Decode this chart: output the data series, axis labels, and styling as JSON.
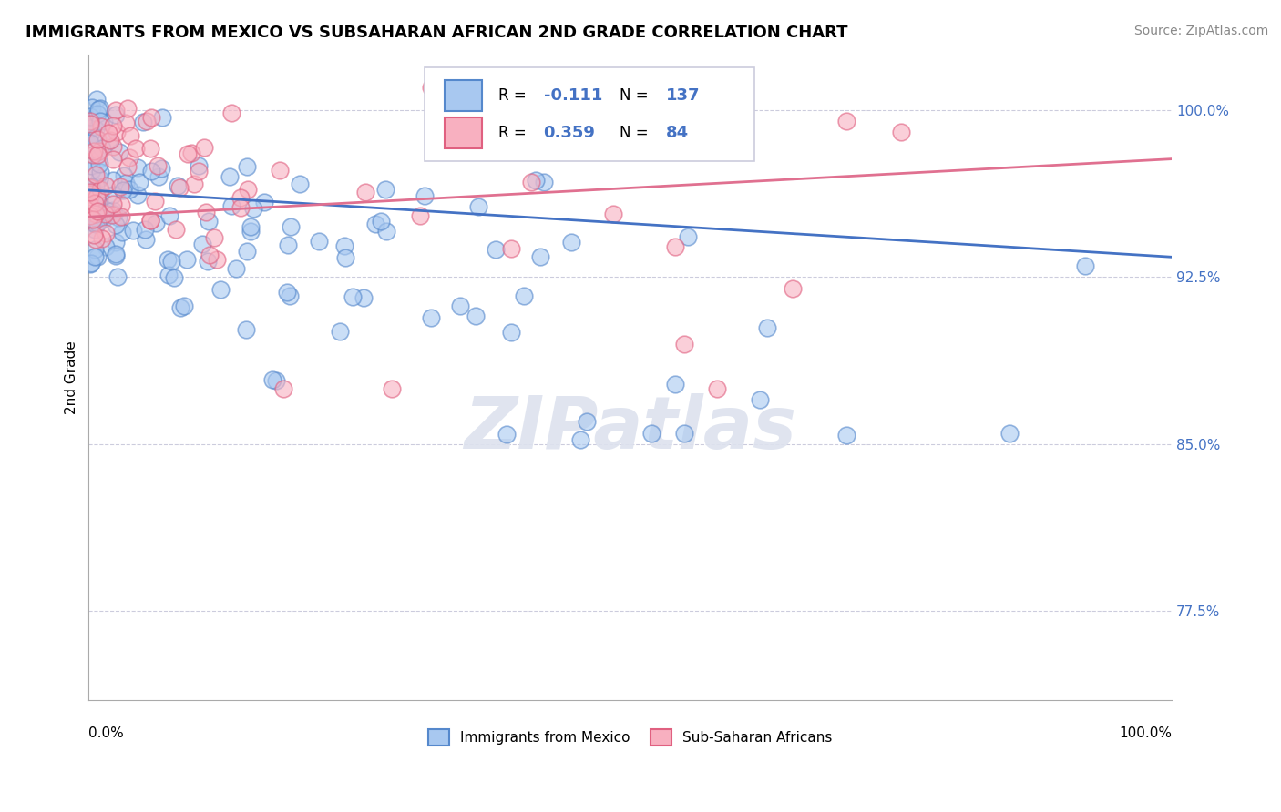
{
  "title": "IMMIGRANTS FROM MEXICO VS SUBSAHARAN AFRICAN 2ND GRADE CORRELATION CHART",
  "source": "Source: ZipAtlas.com",
  "ylabel": "2nd Grade",
  "y_ticks": [
    0.775,
    0.85,
    0.925,
    1.0
  ],
  "y_tick_labels": [
    "77.5%",
    "85.0%",
    "92.5%",
    "100.0%"
  ],
  "x_range": [
    0.0,
    1.0
  ],
  "y_range": [
    0.735,
    1.025
  ],
  "mexico_R": -0.111,
  "mexico_N": 137,
  "subsaharan_R": 0.359,
  "subsaharan_N": 84,
  "blue_color": "#A8C8F0",
  "pink_color": "#F8B0C0",
  "blue_edge_color": "#5588CC",
  "pink_edge_color": "#E06080",
  "blue_line_color": "#4472C4",
  "pink_line_color": "#E07090",
  "tick_label_color": "#4472C4",
  "watermark": "ZIPatlas",
  "blue_R_text": "-0.111",
  "blue_N_text": "137",
  "pink_R_text": "0.359",
  "pink_N_text": "84",
  "blue_trend_start": 0.964,
  "blue_trend_end": 0.934,
  "pink_trend_start": 0.952,
  "pink_trend_end": 0.978
}
